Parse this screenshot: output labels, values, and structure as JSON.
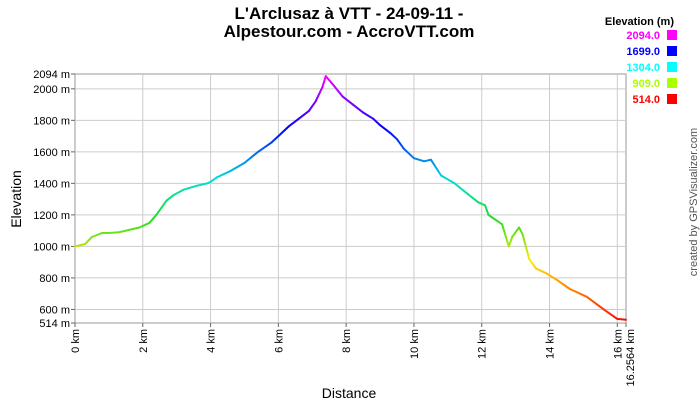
{
  "chart_data": {
    "type": "line",
    "title_line1": "L'Arclusaz à VTT - 24-09-11 -",
    "title_line2": "Alpestour.com - AccroVTT.com",
    "xlabel": "Distance",
    "ylabel": "Elevation",
    "x_unit": "km",
    "y_unit": "m",
    "xlim": [
      0,
      16.2564
    ],
    "ylim": [
      514,
      2094
    ],
    "x_ticks": [
      {
        "value": 0,
        "label": "0 km"
      },
      {
        "value": 2,
        "label": "2 km"
      },
      {
        "value": 4,
        "label": "4 km"
      },
      {
        "value": 6,
        "label": "6 km"
      },
      {
        "value": 8,
        "label": "8 km"
      },
      {
        "value": 10,
        "label": "10 km"
      },
      {
        "value": 12,
        "label": "12 km"
      },
      {
        "value": 14,
        "label": "14 km"
      },
      {
        "value": 16,
        "label": "16 km"
      },
      {
        "value": 16.2564,
        "label": "16.2564 km"
      }
    ],
    "y_ticks": [
      {
        "value": 514,
        "label": "514 m"
      },
      {
        "value": 600,
        "label": "600 m"
      },
      {
        "value": 800,
        "label": "800 m"
      },
      {
        "value": 1000,
        "label": "1000 m"
      },
      {
        "value": 1200,
        "label": "1200 m"
      },
      {
        "value": 1400,
        "label": "1400 m"
      },
      {
        "value": 1600,
        "label": "1600 m"
      },
      {
        "value": 1800,
        "label": "1800 m"
      },
      {
        "value": 2000,
        "label": "2000 m"
      },
      {
        "value": 2094,
        "label": "2094 m"
      }
    ],
    "grid": true,
    "legend_position": "top-right",
    "legend_title": "Elevation (m)",
    "legend": [
      {
        "label": "2094.0",
        "color": "#ff00ff"
      },
      {
        "label": "1699.0",
        "color": "#0000ff"
      },
      {
        "label": "1304.0",
        "color": "#00ffff"
      },
      {
        "label": "909.0",
        "color": "#aaff00"
      },
      {
        "label": "514.0",
        "color": "#ff0000"
      }
    ],
    "color_scale": "elevation gradient: red (low) → yellow → green → cyan → blue → magenta (high)",
    "series": [
      {
        "name": "Elevation",
        "x": [
          0,
          0.3,
          0.5,
          0.8,
          1.0,
          1.3,
          1.6,
          1.9,
          2.2,
          2.4,
          2.7,
          2.9,
          3.2,
          3.6,
          3.9,
          4.0,
          4.2,
          4.6,
          5.0,
          5.4,
          5.8,
          6.0,
          6.3,
          6.6,
          6.9,
          7.1,
          7.3,
          7.4,
          7.6,
          7.9,
          8.2,
          8.5,
          8.8,
          9.0,
          9.3,
          9.5,
          9.7,
          10.0,
          10.3,
          10.5,
          10.8,
          11.2,
          11.6,
          11.9,
          12.1,
          12.2,
          12.6,
          12.8,
          12.9,
          13.1,
          13.2,
          13.4,
          13.6,
          13.9,
          14.2,
          14.6,
          15.1,
          15.6,
          16.0,
          16.2564
        ],
        "y": [
          1000,
          1015,
          1060,
          1085,
          1085,
          1090,
          1105,
          1120,
          1150,
          1200,
          1290,
          1325,
          1360,
          1385,
          1400,
          1410,
          1440,
          1480,
          1530,
          1600,
          1660,
          1700,
          1760,
          1810,
          1860,
          1920,
          2010,
          2080,
          2030,
          1950,
          1900,
          1850,
          1810,
          1770,
          1720,
          1680,
          1620,
          1560,
          1540,
          1550,
          1450,
          1400,
          1330,
          1280,
          1260,
          1200,
          1140,
          1000,
          1060,
          1120,
          1080,
          920,
          860,
          830,
          790,
          730,
          680,
          600,
          540,
          535
        ]
      }
    ]
  },
  "credit": "created by GPSVisualizer.com"
}
